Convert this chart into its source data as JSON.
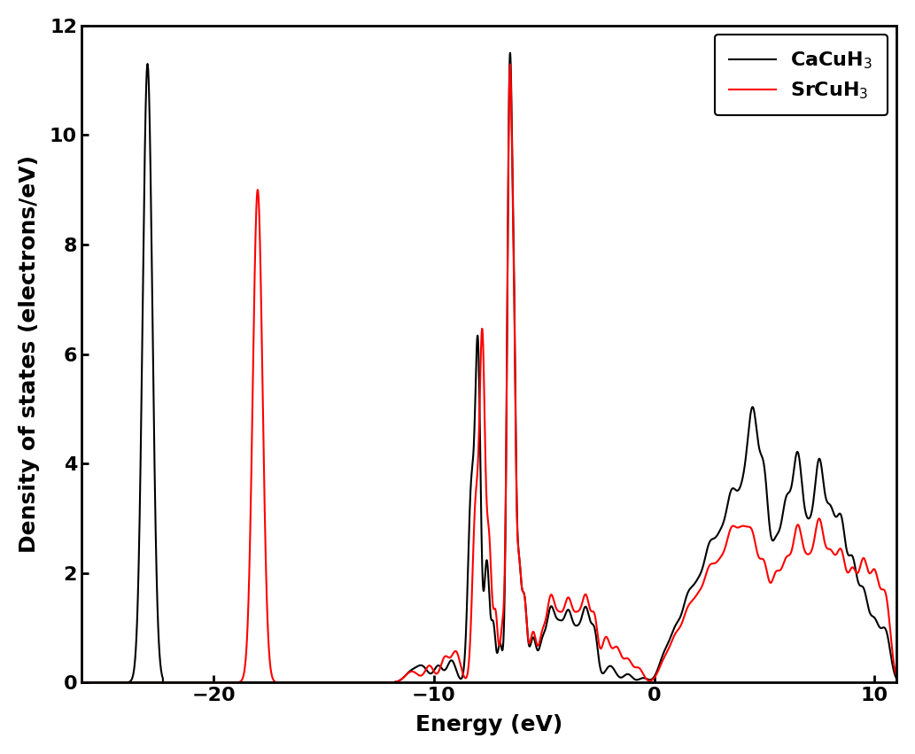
{
  "title": "",
  "xlabel": "Energy (eV)",
  "ylabel": "Density of states (electrons/eV)",
  "xlim": [
    -26,
    11
  ],
  "ylim": [
    0,
    12
  ],
  "xticks": [
    -20,
    -10,
    0,
    10
  ],
  "yticks": [
    0,
    2,
    4,
    6,
    8,
    10,
    12
  ],
  "legend_labels": [
    "CaCuH$_3$",
    "SrCuH$_3$"
  ],
  "legend_colors": [
    "black",
    "red"
  ],
  "line_width": 1.5,
  "background_color": "#ffffff",
  "figsize": [
    10.33,
    8.51
  ],
  "dpi": 100
}
